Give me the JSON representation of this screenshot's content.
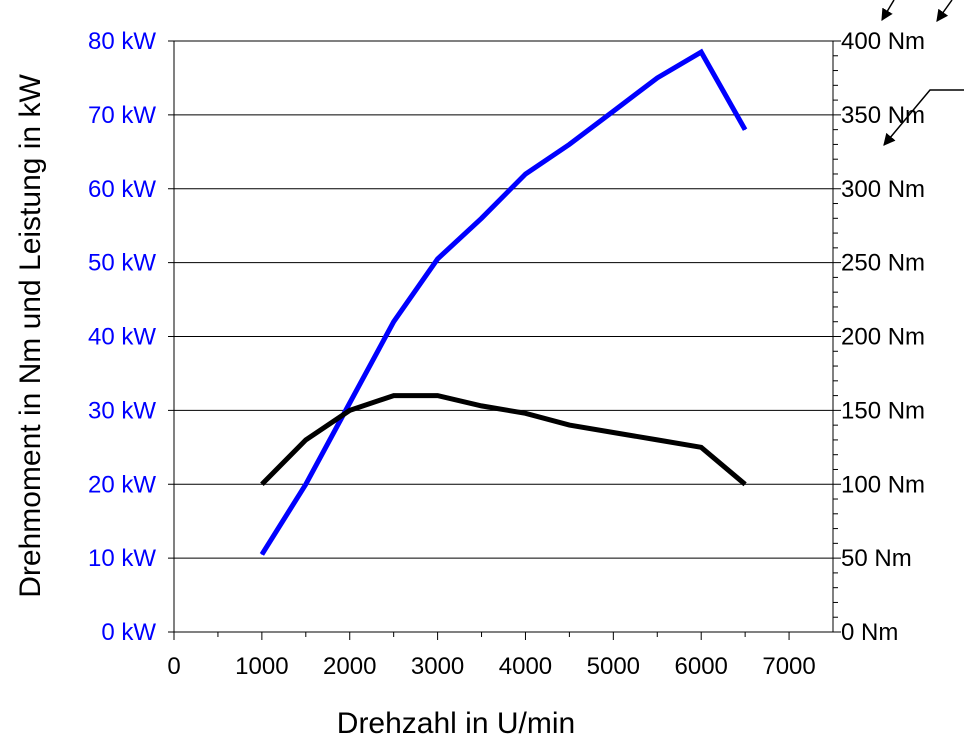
{
  "chart_data": {
    "type": "line",
    "title": "",
    "xlabel": "Drehzahl in U/min",
    "ylabel": "Drehmoment in Nm und Leistung in kW",
    "xlim": [
      0,
      7500
    ],
    "ylim_left": [
      0,
      80
    ],
    "ylim_right": [
      0,
      400
    ],
    "x_ticks": [
      "0",
      "1000",
      "2000",
      "3000",
      "4000",
      "5000",
      "6000",
      "7000"
    ],
    "x_tick_values": [
      0,
      1000,
      2000,
      3000,
      4000,
      5000,
      6000,
      7000
    ],
    "y_left_ticks": [
      "0 kW",
      "10 kW",
      "20 kW",
      "30 kW",
      "40 kW",
      "50 kW",
      "60 kW",
      "70 kW",
      "80 kW"
    ],
    "y_left_tick_values": [
      0,
      10,
      20,
      30,
      40,
      50,
      60,
      70,
      80
    ],
    "y_right_ticks": [
      "0 Nm",
      "50 Nm",
      "100 Nm",
      "150 Nm",
      "200 Nm",
      "250 Nm",
      "300 Nm",
      "350 Nm",
      "400 Nm"
    ],
    "y_right_tick_values": [
      0,
      50,
      100,
      150,
      200,
      250,
      300,
      350,
      400
    ],
    "grid": "horizontal",
    "legend": "none",
    "colors": {
      "power": "#0000ff",
      "torque": "#000000",
      "left_axis_text": "#0000ff",
      "right_axis_text": "#000000",
      "grid": "#000000"
    },
    "x": [
      1000,
      1500,
      2000,
      2500,
      3000,
      3500,
      4000,
      4500,
      5000,
      5500,
      6000,
      6500
    ],
    "series": [
      {
        "axis": "left",
        "unit": "kW",
        "values": [
          10.5,
          20,
          31,
          42,
          50.5,
          56,
          62,
          66,
          70.5,
          75,
          78.5,
          68
        ]
      },
      {
        "axis": "right",
        "unit": "Nm",
        "values": [
          100,
          130,
          150,
          160,
          160,
          153,
          148,
          140,
          135,
          130,
          125,
          100
        ]
      }
    ]
  }
}
